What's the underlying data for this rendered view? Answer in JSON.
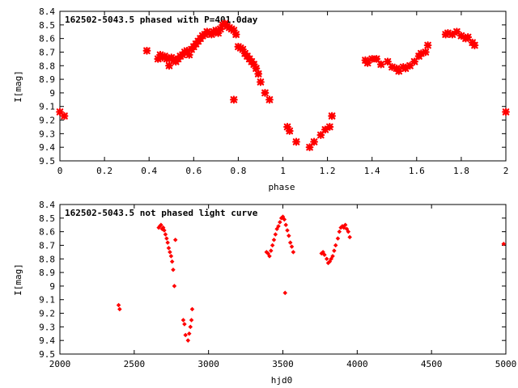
{
  "colors": {
    "points": "#ff0000",
    "frame": "#000000",
    "background": "#ffffff"
  },
  "chart_data": [
    {
      "type": "scatter",
      "title": "162502-5043.5 phased with P=401.0day",
      "xlabel": "phase",
      "ylabel": "I[mag]",
      "xlim": [
        0,
        2
      ],
      "ylim": [
        8.4,
        9.5
      ],
      "y_inverted": true,
      "x_ticks": [
        "0",
        "0.2",
        "0.4",
        "0.6",
        "0.8",
        "1",
        "1.2",
        "1.4",
        "1.6",
        "1.8",
        "2"
      ],
      "y_ticks": [
        "8.4",
        "8.5",
        "8.6",
        "8.7",
        "8.8",
        "8.9",
        "9",
        "9.1",
        "9.2",
        "9.3",
        "9.4",
        "9.5"
      ],
      "grid": false,
      "series": [
        {
          "marker": "filled-star",
          "x": [
            0.0,
            0.02,
            0.39,
            0.44,
            0.45,
            0.46,
            0.47,
            0.48,
            0.49,
            0.5,
            0.51,
            0.52,
            0.53,
            0.54,
            0.55,
            0.56,
            0.57,
            0.58,
            0.59,
            0.6,
            0.61,
            0.62,
            0.63,
            0.64,
            0.65,
            0.66,
            0.67,
            0.68,
            0.69,
            0.7,
            0.71,
            0.72,
            0.73,
            0.74,
            0.75,
            0.76,
            0.77,
            0.78,
            0.79,
            0.8,
            0.81,
            0.82,
            0.83,
            0.84,
            0.85,
            0.86,
            0.87,
            0.88,
            0.89,
            0.9,
            0.92,
            0.94,
            0.78,
            1.02,
            1.03,
            1.06,
            1.12,
            1.14,
            1.17,
            1.19,
            1.21,
            1.22,
            1.37,
            1.38,
            1.4,
            1.42,
            1.44,
            1.47,
            1.49,
            1.51,
            1.52,
            1.54,
            1.55,
            1.57,
            1.59,
            1.61,
            1.62,
            1.64,
            1.65,
            1.73,
            1.74,
            1.76,
            1.78,
            1.8,
            1.82,
            1.83,
            1.85,
            1.86,
            2.0
          ],
          "y": [
            9.14,
            9.17,
            8.69,
            8.75,
            8.72,
            8.74,
            8.73,
            8.75,
            8.8,
            8.74,
            8.76,
            8.77,
            8.75,
            8.73,
            8.72,
            8.7,
            8.69,
            8.72,
            8.68,
            8.66,
            8.64,
            8.62,
            8.6,
            8.58,
            8.57,
            8.55,
            8.56,
            8.57,
            8.55,
            8.54,
            8.56,
            8.53,
            8.5,
            8.49,
            8.51,
            8.52,
            8.53,
            8.54,
            8.57,
            8.66,
            8.67,
            8.68,
            8.71,
            8.73,
            8.75,
            8.77,
            8.79,
            8.82,
            8.86,
            8.92,
            9.0,
            9.05,
            9.05,
            9.25,
            9.28,
            9.36,
            9.4,
            9.36,
            9.31,
            9.27,
            9.25,
            9.17,
            8.76,
            8.78,
            8.75,
            8.75,
            8.79,
            8.77,
            8.81,
            8.82,
            8.84,
            8.81,
            8.82,
            8.8,
            8.77,
            8.73,
            8.71,
            8.7,
            8.65,
            8.57,
            8.56,
            8.57,
            8.55,
            8.58,
            8.6,
            8.59,
            8.63,
            8.65,
            9.14
          ]
        }
      ]
    },
    {
      "type": "scatter",
      "title": "162502-5043.5 not phased light curve",
      "xlabel": "hjd0",
      "ylabel": "I[mag]",
      "xlim": [
        2000,
        5000
      ],
      "ylim": [
        8.4,
        9.5
      ],
      "y_inverted": true,
      "x_ticks": [
        "2000",
        "2500",
        "3000",
        "3500",
        "4000",
        "4500",
        "5000"
      ],
      "y_ticks": [
        "8.4",
        "8.5",
        "8.6",
        "8.7",
        "8.8",
        "8.9",
        "9",
        "9.1",
        "9.2",
        "9.3",
        "9.4",
        "9.5"
      ],
      "grid": false,
      "series": [
        {
          "marker": "diamond",
          "x": [
            2395,
            2402,
            2665,
            2672,
            2680,
            2688,
            2695,
            2702,
            2710,
            2718,
            2725,
            2732,
            2740,
            2748,
            2755,
            2762,
            2770,
            2777,
            2830,
            2838,
            2845,
            2862,
            2870,
            2878,
            2885,
            2890,
            3390,
            3400,
            3410,
            3420,
            3430,
            3440,
            3450,
            3460,
            3470,
            3480,
            3490,
            3500,
            3510,
            3520,
            3530,
            3540,
            3550,
            3560,
            3570,
            3515,
            3760,
            3770,
            3780,
            3795,
            3805,
            3815,
            3825,
            3835,
            3845,
            3855,
            3870,
            3880,
            3890,
            3900,
            3910,
            3920,
            3930,
            3940,
            3950,
            4985
          ],
          "y": [
            9.14,
            9.17,
            8.57,
            8.56,
            8.55,
            8.58,
            8.57,
            8.59,
            8.62,
            8.65,
            8.68,
            8.72,
            8.75,
            8.78,
            8.82,
            8.88,
            9.0,
            8.66,
            9.25,
            9.28,
            9.36,
            9.4,
            9.35,
            9.3,
            9.25,
            9.17,
            8.75,
            8.76,
            8.78,
            8.74,
            8.7,
            8.66,
            8.62,
            8.58,
            8.56,
            8.53,
            8.5,
            8.49,
            8.51,
            8.55,
            8.59,
            8.63,
            8.68,
            8.71,
            8.75,
            9.05,
            8.76,
            8.75,
            8.77,
            8.8,
            8.83,
            8.82,
            8.8,
            8.78,
            8.74,
            8.7,
            8.65,
            8.6,
            8.57,
            8.56,
            8.57,
            8.55,
            8.58,
            8.6,
            8.64,
            8.69
          ]
        }
      ]
    }
  ]
}
